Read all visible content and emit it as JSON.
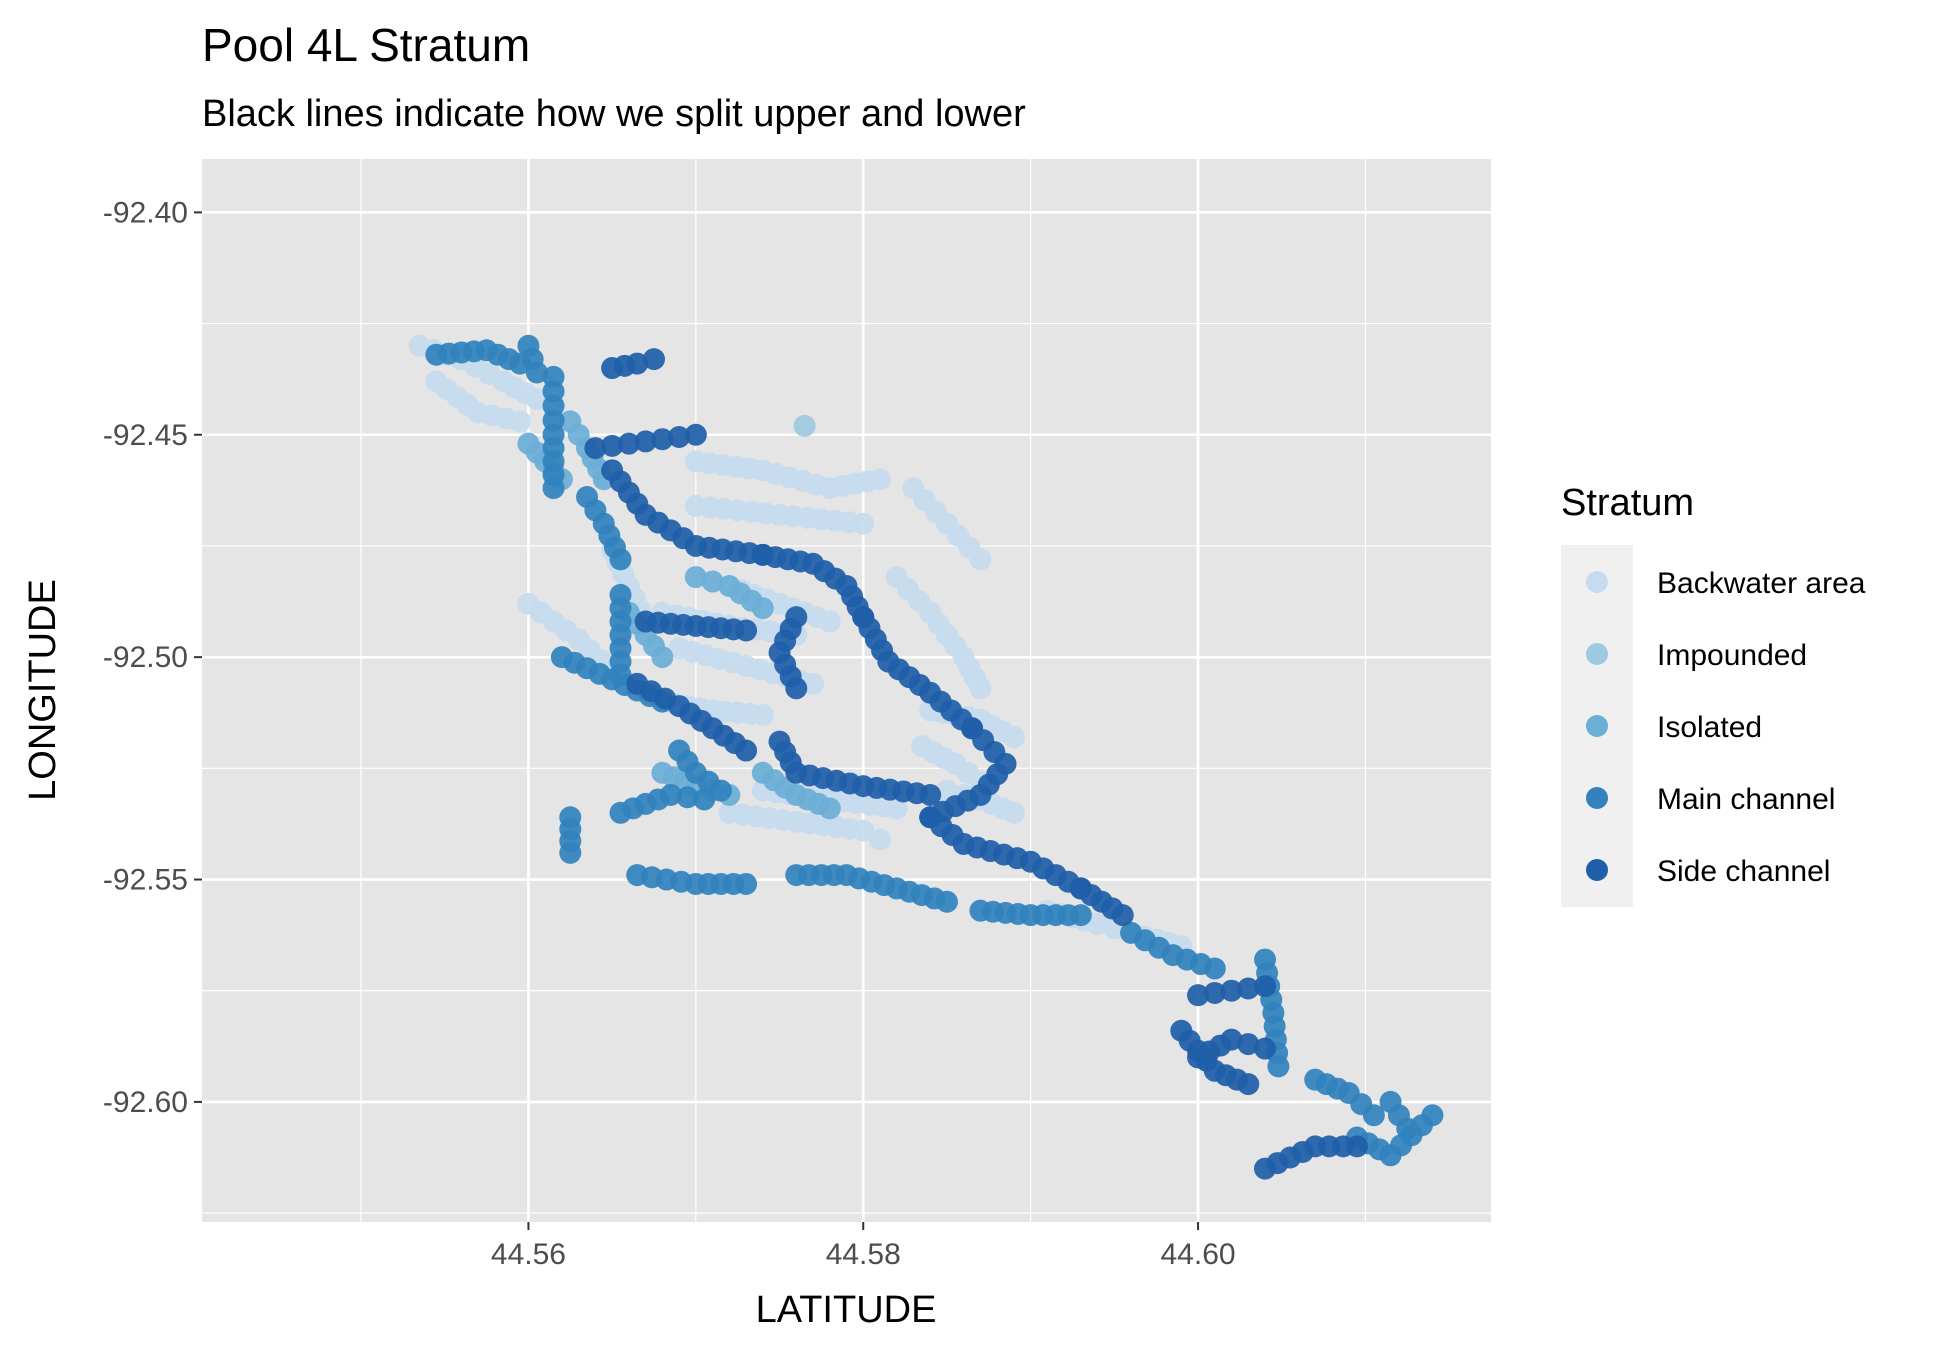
{
  "chart_data": {
    "type": "scatter",
    "title": "Pool 4L Stratum",
    "subtitle": "Black lines indicate how we split upper and lower",
    "xlabel": "LATITUDE",
    "ylabel": "LONGITUDE",
    "xlim": [
      44.5405,
      44.6175
    ],
    "ylim": [
      -92.627,
      -92.388
    ],
    "x_ticks": [
      44.56,
      44.58,
      44.6
    ],
    "x_tick_labels": [
      "44.56",
      "44.58",
      "44.60"
    ],
    "y_ticks": [
      -92.4,
      -92.45,
      -92.5,
      -92.55,
      -92.6
    ],
    "y_tick_labels": [
      "-92.40",
      "-92.45",
      "-92.50",
      "-92.55",
      "-92.60"
    ],
    "grid": true,
    "legend_position": "right",
    "legend": {
      "title": "Stratum",
      "entries": [
        "Backwater area",
        "Impounded",
        "Isolated",
        "Main channel",
        "Side channel"
      ]
    },
    "colors": {
      "panel_background": "#e5e5e5",
      "grid": "#ffffff",
      "Backwater area": "#c6dbef",
      "Impounded": "#9ecae1",
      "Isolated": "#6baed6",
      "Main channel": "#3182bd",
      "Side channel": "#1f5ea8"
    },
    "series": [
      {
        "name": "Backwater area",
        "segments": [
          [
            [
              44.5535,
              -92.43
            ],
            [
              44.556,
              -92.433
            ],
            [
              44.5585,
              -92.438
            ],
            [
              44.5605,
              -92.442
            ]
          ],
          [
            [
              44.5545,
              -92.438
            ],
            [
              44.557,
              -92.445
            ],
            [
              44.5595,
              -92.447
            ]
          ],
          [
            [
              44.57,
              -92.456
            ],
            [
              44.574,
              -92.458
            ],
            [
              44.578,
              -92.462
            ],
            [
              44.581,
              -92.46
            ]
          ],
          [
            [
              44.57,
              -92.466
            ],
            [
              44.575,
              -92.468
            ],
            [
              44.58,
              -92.47
            ]
          ],
          [
            [
              44.583,
              -92.462
            ],
            [
              44.585,
              -92.47
            ],
            [
              44.587,
              -92.478
            ]
          ],
          [
            [
              44.582,
              -92.482
            ],
            [
              44.584,
              -92.49
            ],
            [
              44.586,
              -92.5
            ],
            [
              44.587,
              -92.507
            ]
          ],
          [
            [
              44.565,
              -92.476
            ],
            [
              44.566,
              -92.484
            ],
            [
              44.567,
              -92.492
            ]
          ],
          [
            [
              44.568,
              -92.49
            ],
            [
              44.572,
              -92.493
            ],
            [
              44.576,
              -92.495
            ]
          ],
          [
            [
              44.569,
              -92.498
            ],
            [
              44.573,
              -92.502
            ],
            [
              44.577,
              -92.506
            ]
          ],
          [
            [
              44.572,
              -92.484
            ],
            [
              44.575,
              -92.488
            ],
            [
              44.578,
              -92.492
            ]
          ],
          [
            [
              44.56,
              -92.488
            ],
            [
              44.563,
              -92.496
            ],
            [
              44.565,
              -92.503
            ]
          ],
          [
            [
              44.568,
              -92.51
            ],
            [
              44.571,
              -92.512
            ],
            [
              44.574,
              -92.513
            ]
          ],
          [
            [
              44.572,
              -92.535
            ],
            [
              44.576,
              -92.537
            ],
            [
              44.58,
              -92.539
            ],
            [
              44.581,
              -92.541
            ]
          ],
          [
            [
              44.574,
              -92.53
            ],
            [
              44.578,
              -92.532
            ],
            [
              44.582,
              -92.534
            ]
          ],
          [
            [
              44.585,
              -92.53
            ],
            [
              44.587,
              -92.532
            ],
            [
              44.589,
              -92.535
            ]
          ],
          [
            [
              44.584,
              -92.512
            ],
            [
              44.587,
              -92.514
            ],
            [
              44.589,
              -92.518
            ]
          ],
          [
            [
              44.5835,
              -92.52
            ],
            [
              44.5855,
              -92.524
            ],
            [
              44.587,
              -92.528
            ]
          ],
          [
            [
              44.591,
              -92.557
            ],
            [
              44.594,
              -92.56
            ],
            [
              44.596,
              -92.562
            ],
            [
              44.599,
              -92.565
            ]
          ]
        ]
      },
      {
        "name": "Impounded",
        "segments": [
          [
            [
              44.5765,
              -92.448
            ]
          ]
        ]
      },
      {
        "name": "Isolated",
        "segments": [
          [
            [
              44.5625,
              -92.447
            ],
            [
              44.5635,
              -92.453
            ],
            [
              44.5645,
              -92.46
            ]
          ],
          [
            [
              44.56,
              -92.452
            ],
            [
              44.561,
              -92.456
            ],
            [
              44.562,
              -92.46
            ]
          ],
          [
            [
              44.566,
              -92.49
            ],
            [
              44.567,
              -92.495
            ],
            [
              44.568,
              -92.5
            ]
          ],
          [
            [
              44.57,
              -92.482
            ],
            [
              44.572,
              -92.484
            ],
            [
              44.574,
              -92.489
            ]
          ],
          [
            [
              44.568,
              -92.526
            ],
            [
              44.57,
              -92.529
            ],
            [
              44.572,
              -92.531
            ]
          ],
          [
            [
              44.574,
              -92.526
            ],
            [
              44.576,
              -92.531
            ],
            [
              44.578,
              -92.534
            ]
          ]
        ]
      },
      {
        "name": "Main channel",
        "segments": [
          [
            [
              44.5545,
              -92.432
            ],
            [
              44.5575,
              -92.431
            ],
            [
              44.5595,
              -92.434
            ]
          ],
          [
            [
              44.56,
              -92.43
            ],
            [
              44.5605,
              -92.436
            ]
          ],
          [
            [
              44.5615,
              -92.437
            ],
            [
              44.5615,
              -92.45
            ],
            [
              44.5615,
              -92.462
            ]
          ],
          [
            [
              44.5635,
              -92.464
            ],
            [
              44.5645,
              -92.47
            ],
            [
              44.5655,
              -92.478
            ]
          ],
          [
            [
              44.5655,
              -92.486
            ],
            [
              44.5655,
              -92.495
            ],
            [
              44.5655,
              -92.504
            ]
          ],
          [
            [
              44.5625,
              -92.536
            ],
            [
              44.5625,
              -92.544
            ]
          ],
          [
            [
              44.5655,
              -92.535
            ],
            [
              44.5685,
              -92.531
            ],
            [
              44.5705,
              -92.532
            ]
          ],
          [
            [
              44.5665,
              -92.549
            ],
            [
              44.57,
              -92.551
            ],
            [
              44.573,
              -92.551
            ]
          ],
          [
            [
              44.576,
              -92.549
            ],
            [
              44.579,
              -92.549
            ],
            [
              44.582,
              -92.552
            ],
            [
              44.585,
              -92.555
            ]
          ],
          [
            [
              44.587,
              -92.557
            ],
            [
              44.59,
              -92.558
            ],
            [
              44.593,
              -92.558
            ]
          ],
          [
            [
              44.596,
              -92.562
            ],
            [
              44.5985,
              -92.567
            ],
            [
              44.601,
              -92.57
            ]
          ],
          [
            [
              44.604,
              -92.568
            ],
            [
              44.6045,
              -92.58
            ],
            [
              44.6048,
              -92.592
            ]
          ],
          [
            [
              44.607,
              -92.595
            ],
            [
              44.609,
              -92.598
            ],
            [
              44.6105,
              -92.603
            ]
          ],
          [
            [
              44.6095,
              -92.608
            ],
            [
              44.6115,
              -92.612
            ],
            [
              44.614,
              -92.603
            ]
          ],
          [
            [
              44.6115,
              -92.6
            ],
            [
              44.6125,
              -92.606
            ]
          ],
          [
            [
              44.562,
              -92.5
            ],
            [
              44.565,
              -92.505
            ],
            [
              44.568,
              -92.51
            ]
          ],
          [
            [
              44.569,
              -92.521
            ],
            [
              44.57,
              -92.526
            ],
            [
              44.5715,
              -92.53
            ]
          ]
        ]
      },
      {
        "name": "Side channel",
        "segments": [
          [
            [
              44.565,
              -92.435
            ],
            [
              44.5665,
              -92.434
            ],
            [
              44.5675,
              -92.433
            ]
          ],
          [
            [
              44.564,
              -92.453
            ],
            [
              44.566,
              -92.452
            ],
            [
              44.568,
              -92.451
            ],
            [
              44.57,
              -92.45
            ]
          ],
          [
            [
              44.565,
              -92.458
            ],
            [
              44.567,
              -92.468
            ],
            [
              44.57,
              -92.475
            ],
            [
              44.574,
              -92.477
            ]
          ],
          [
            [
              44.574,
              -92.477
            ],
            [
              44.577,
              -92.479
            ],
            [
              44.579,
              -92.484
            ],
            [
              44.58,
              -92.491
            ]
          ],
          [
            [
              44.58,
              -92.491
            ],
            [
              44.5815,
              -92.501
            ],
            [
              44.584,
              -92.508
            ],
            [
              44.5865,
              -92.516
            ]
          ],
          [
            [
              44.5865,
              -92.516
            ],
            [
              44.5885,
              -92.524
            ],
            [
              44.587,
              -92.531
            ],
            [
              44.584,
              -92.536
            ]
          ],
          [
            [
              44.584,
              -92.536
            ],
            [
              44.586,
              -92.542
            ],
            [
              44.59,
              -92.546
            ],
            [
              44.593,
              -92.552
            ]
          ],
          [
            [
              44.593,
              -92.552
            ],
            [
              44.5955,
              -92.558
            ]
          ],
          [
            [
              44.576,
              -92.491
            ],
            [
              44.575,
              -92.499
            ],
            [
              44.576,
              -92.507
            ]
          ],
          [
            [
              44.575,
              -92.519
            ],
            [
              44.576,
              -92.526
            ],
            [
              44.58,
              -92.529
            ],
            [
              44.584,
              -92.531
            ]
          ],
          [
            [
              44.5665,
              -92.506
            ],
            [
              44.569,
              -92.511
            ],
            [
              44.571,
              -92.516
            ],
            [
              44.573,
              -92.521
            ]
          ],
          [
            [
              44.567,
              -92.492
            ],
            [
              44.57,
              -92.493
            ],
            [
              44.573,
              -92.494
            ]
          ],
          [
            [
              44.6,
              -92.59
            ],
            [
              44.602,
              -92.586
            ],
            [
              44.604,
              -92.588
            ]
          ],
          [
            [
              44.6,
              -92.576
            ],
            [
              44.602,
              -92.575
            ],
            [
              44.604,
              -92.574
            ]
          ],
          [
            [
              44.599,
              -92.584
            ],
            [
              44.601,
              -92.593
            ],
            [
              44.603,
              -92.596
            ]
          ],
          [
            [
              44.604,
              -92.615
            ],
            [
              44.607,
              -92.61
            ],
            [
              44.6095,
              -92.61
            ]
          ]
        ]
      }
    ]
  }
}
